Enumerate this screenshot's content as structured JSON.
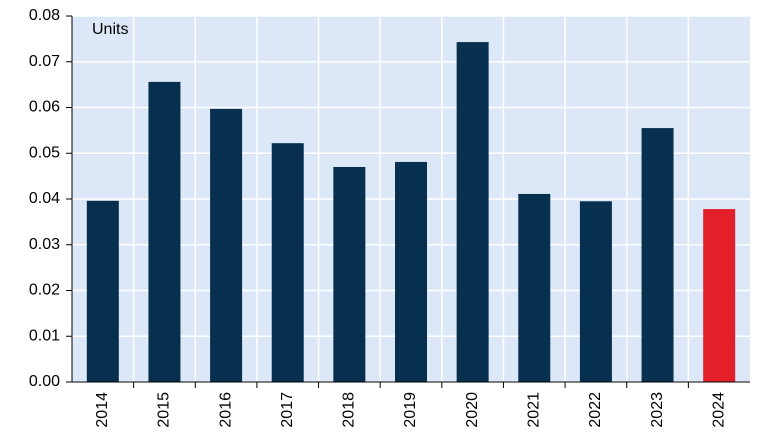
{
  "chart_data": {
    "type": "bar",
    "annotation": "Units",
    "categories": [
      "2014",
      "2015",
      "2016",
      "2017",
      "2018",
      "2019",
      "2020",
      "2021",
      "2022",
      "2023",
      "2024"
    ],
    "values": [
      0.0396,
      0.0656,
      0.0597,
      0.0522,
      0.047,
      0.0481,
      0.0743,
      0.0411,
      0.0395,
      0.0555,
      0.0378
    ],
    "colors": [
      "#06304d",
      "#06304d",
      "#06304d",
      "#06304d",
      "#06304d",
      "#06304d",
      "#06304d",
      "#06304d",
      "#06304d",
      "#06304d",
      "#e3202a"
    ],
    "ylim": [
      0,
      0.08
    ],
    "yticks": [
      {
        "value": 0,
        "label": "0.00"
      },
      {
        "value": 0.01,
        "label": "0.01"
      },
      {
        "value": 0.02,
        "label": "0.02"
      },
      {
        "value": 0.03,
        "label": "0.03"
      },
      {
        "value": 0.04,
        "label": "0.04"
      },
      {
        "value": 0.05,
        "label": "0.05"
      },
      {
        "value": 0.06,
        "label": "0.06"
      },
      {
        "value": 0.07,
        "label": "0.07"
      },
      {
        "value": 0.08,
        "label": "0.08"
      }
    ],
    "grid": true,
    "background": "#dce8f8"
  }
}
